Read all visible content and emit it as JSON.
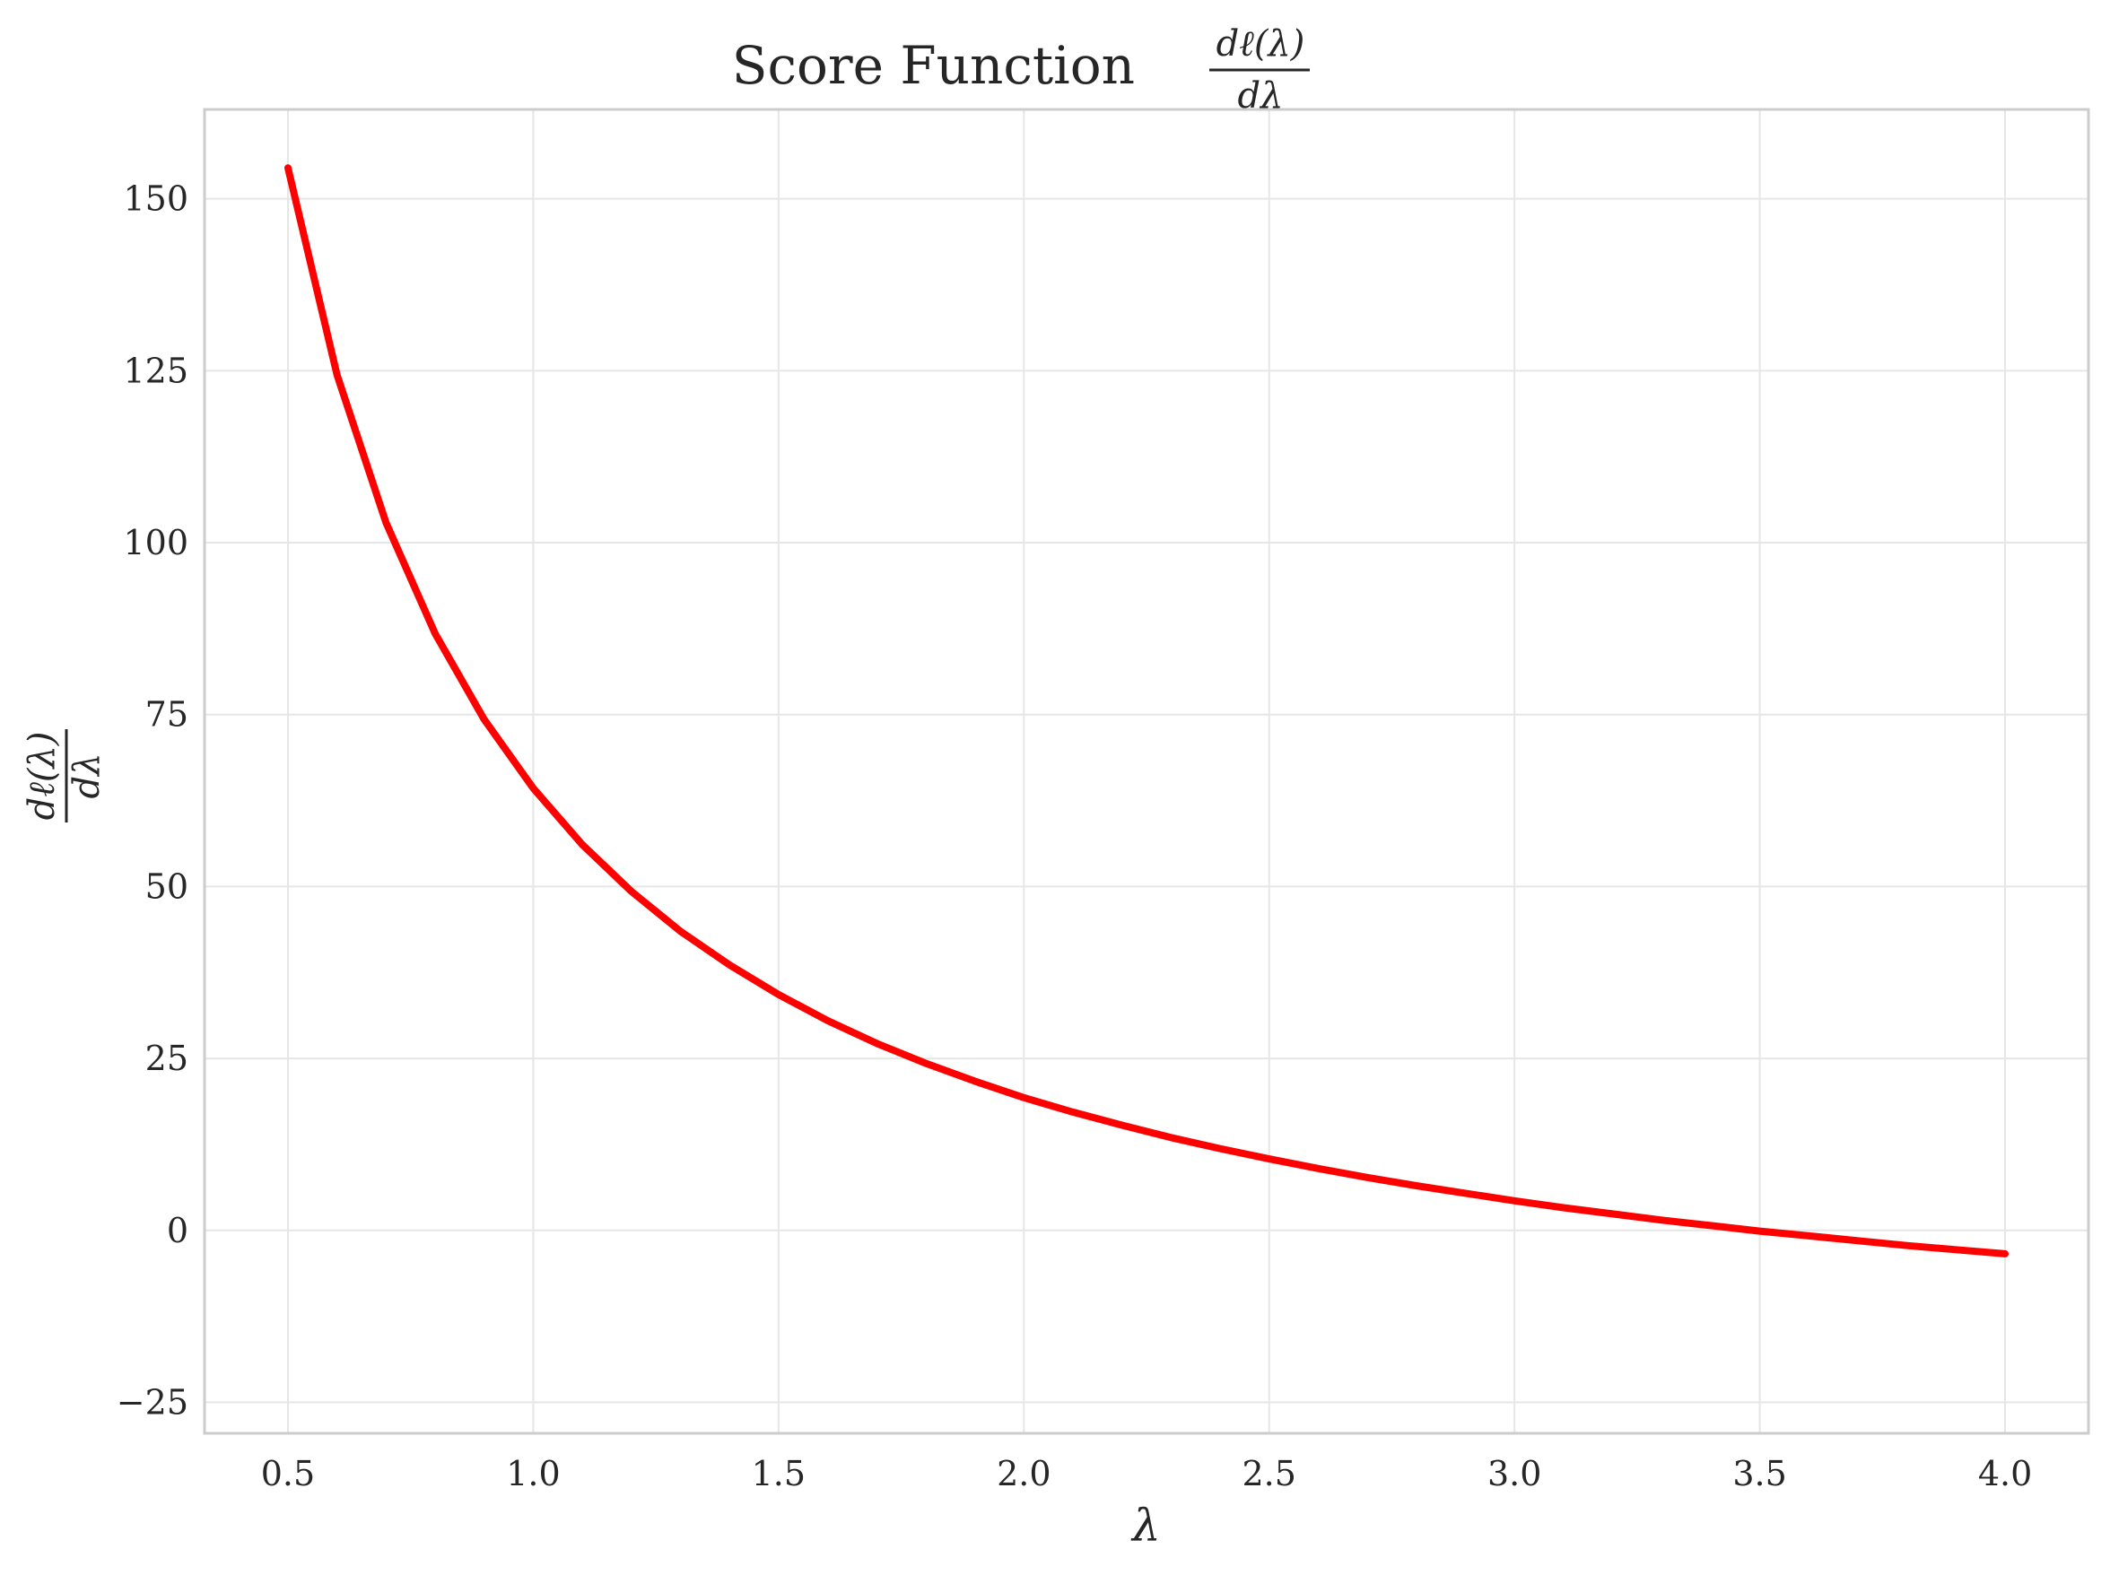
{
  "chart_data": {
    "type": "line",
    "title": {
      "text": "Score Function",
      "fraction_numerator": "dℓ(λ)",
      "fraction_denominator": "dλ"
    },
    "xlabel": "λ",
    "ylabel": {
      "fraction_numerator": "dℓ(λ)",
      "fraction_denominator": "dλ"
    },
    "xlim": [
      0.33,
      4.17
    ],
    "ylim": [
      -29.5,
      163
    ],
    "x_ticks": [
      0.5,
      1.0,
      1.5,
      2.0,
      2.5,
      3.0,
      3.5,
      4.0
    ],
    "x_tick_labels": [
      "0.5",
      "1.0",
      "1.5",
      "2.0",
      "2.5",
      "3.0",
      "3.5",
      "4.0"
    ],
    "y_ticks": [
      -25,
      0,
      25,
      50,
      75,
      100,
      125,
      150
    ],
    "y_tick_labels": [
      "−25",
      "0",
      "25",
      "50",
      "75",
      "100",
      "125",
      "150"
    ],
    "grid": true,
    "legend": "none",
    "series": [
      {
        "color": "#ff0000",
        "x": [
          0.5,
          0.6,
          0.7,
          0.8,
          0.9,
          1.0,
          1.1,
          1.2,
          1.3,
          1.4,
          1.5,
          1.6,
          1.7,
          1.8,
          1.9,
          2.0,
          2.1,
          2.2,
          2.3,
          2.4,
          2.5,
          2.6,
          2.7,
          2.8,
          2.9,
          3.0,
          3.1,
          3.2,
          3.3,
          3.4,
          3.5,
          3.6,
          3.7,
          3.8,
          3.9,
          4.0
        ],
        "y": [
          154.5,
          124.4,
          102.9,
          86.8,
          74.3,
          64.3,
          56.1,
          49.3,
          43.5,
          38.6,
          34.3,
          30.5,
          27.2,
          24.3,
          21.7,
          19.3,
          17.2,
          15.3,
          13.5,
          11.9,
          10.4,
          9.0,
          7.7,
          6.5,
          5.4,
          4.3,
          3.3,
          2.4,
          1.5,
          0.7,
          -0.1,
          -0.8,
          -1.5,
          -2.2,
          -2.8,
          -3.4
        ]
      }
    ]
  }
}
